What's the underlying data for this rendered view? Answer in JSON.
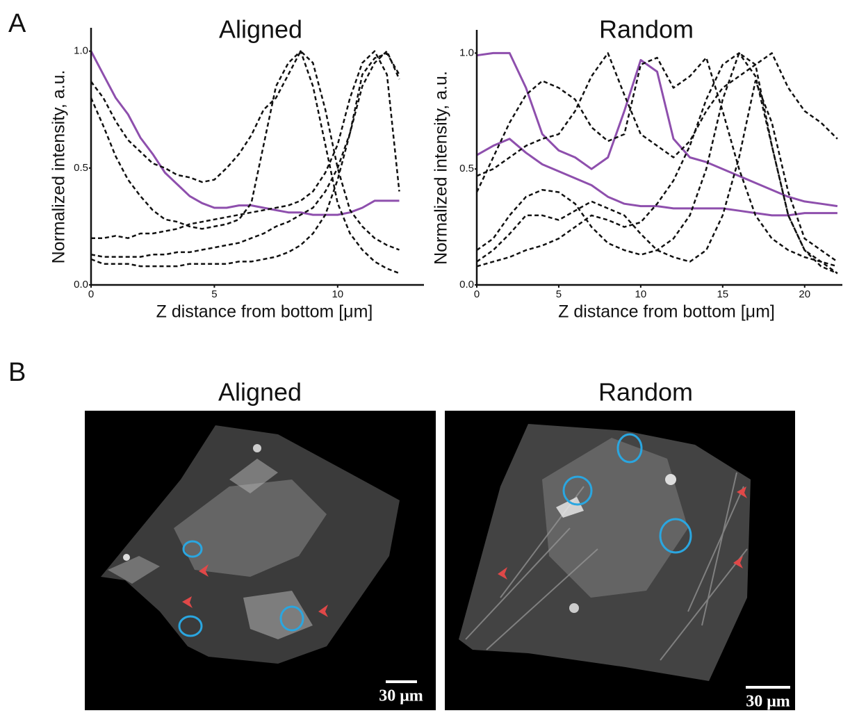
{
  "panel_labels": [
    "A",
    "B"
  ],
  "chart_data": [
    {
      "type": "line",
      "title": "Aligned",
      "xlabel": "Z distance from bottom [μm]",
      "ylabel": "Normalized intensity, a.u.",
      "x": [
        0,
        0.5,
        1,
        1.5,
        2,
        2.5,
        3,
        3.5,
        4,
        4.5,
        5,
        5.5,
        6,
        6.5,
        7,
        7.5,
        8,
        8.5,
        9,
        9.5,
        10,
        10.5,
        11,
        11.5,
        12,
        12.5
      ],
      "xlim": [
        0,
        13.5
      ],
      "xticks": [
        0,
        5,
        10
      ],
      "ylim": [
        0,
        1.1
      ],
      "yticks": [
        {
          "value": 0,
          "label": "0.0"
        },
        {
          "value": 0.5,
          "label": "0.5"
        },
        {
          "value": 1,
          "label": "1.0"
        }
      ],
      "grid": false,
      "series": [
        {
          "color": "#8e4fad",
          "style": "solid",
          "values": [
            1.0,
            0.9,
            0.8,
            0.73,
            0.63,
            0.56,
            0.48,
            0.43,
            0.38,
            0.35,
            0.33,
            0.33,
            0.34,
            0.34,
            0.33,
            0.32,
            0.31,
            0.31,
            0.3,
            0.3,
            0.3,
            0.31,
            0.33,
            0.36,
            0.36,
            0.36
          ]
        },
        {
          "color": "#111111",
          "style": "dashed",
          "values": [
            0.87,
            0.8,
            0.7,
            0.62,
            0.57,
            0.52,
            0.5,
            0.47,
            0.46,
            0.44,
            0.45,
            0.5,
            0.56,
            0.64,
            0.75,
            0.8,
            0.9,
            1.0,
            0.95,
            0.75,
            0.5,
            0.32,
            0.25,
            0.2,
            0.17,
            0.15
          ]
        },
        {
          "color": "#111111",
          "style": "dashed",
          "values": [
            0.8,
            0.68,
            0.55,
            0.45,
            0.38,
            0.32,
            0.28,
            0.27,
            0.25,
            0.24,
            0.25,
            0.26,
            0.28,
            0.35,
            0.6,
            0.85,
            0.95,
            1.0,
            0.85,
            0.6,
            0.35,
            0.22,
            0.15,
            0.1,
            0.07,
            0.05
          ]
        },
        {
          "color": "#111111",
          "style": "dashed",
          "values": [
            0.2,
            0.2,
            0.21,
            0.2,
            0.22,
            0.22,
            0.23,
            0.24,
            0.26,
            0.27,
            0.28,
            0.29,
            0.3,
            0.31,
            0.32,
            0.33,
            0.34,
            0.36,
            0.4,
            0.48,
            0.6,
            0.8,
            0.95,
            1.0,
            0.9,
            0.4
          ]
        },
        {
          "color": "#111111",
          "style": "dashed",
          "values": [
            0.13,
            0.12,
            0.12,
            0.12,
            0.12,
            0.13,
            0.13,
            0.14,
            0.14,
            0.15,
            0.16,
            0.17,
            0.18,
            0.2,
            0.22,
            0.25,
            0.27,
            0.3,
            0.33,
            0.4,
            0.5,
            0.65,
            0.85,
            0.95,
            1.0,
            0.88
          ]
        },
        {
          "color": "#111111",
          "style": "dashed",
          "values": [
            0.11,
            0.09,
            0.09,
            0.09,
            0.08,
            0.08,
            0.08,
            0.08,
            0.09,
            0.09,
            0.09,
            0.09,
            0.1,
            0.1,
            0.11,
            0.12,
            0.14,
            0.17,
            0.22,
            0.3,
            0.45,
            0.65,
            0.9,
            0.97,
            0.99,
            0.9
          ]
        }
      ]
    },
    {
      "type": "line",
      "title": "Random",
      "xlabel": "Z distance from bottom [μm]",
      "ylabel": "Normalized intensity, a.u.",
      "x": [
        0,
        1,
        2,
        3,
        4,
        5,
        6,
        7,
        8,
        9,
        10,
        11,
        12,
        13,
        14,
        15,
        16,
        17,
        18,
        19,
        20,
        21,
        22
      ],
      "xlim": [
        0,
        22.3
      ],
      "xticks": [
        0,
        5,
        10,
        15,
        20
      ],
      "ylim": [
        0,
        1.1
      ],
      "yticks": [
        {
          "value": 0,
          "label": "0.0"
        },
        {
          "value": 0.5,
          "label": "0.5"
        },
        {
          "value": 1,
          "label": "1.0"
        }
      ],
      "grid": false,
      "series": [
        {
          "color": "#8e4fad",
          "style": "solid",
          "values": [
            0.99,
            1.0,
            1.0,
            0.85,
            0.65,
            0.58,
            0.55,
            0.5,
            0.55,
            0.75,
            0.97,
            0.92,
            0.63,
            0.55,
            0.53,
            0.5,
            0.47,
            0.44,
            0.41,
            0.38,
            0.36,
            0.35,
            0.34
          ]
        },
        {
          "color": "#8e4fad",
          "style": "solid",
          "values": [
            0.56,
            0.6,
            0.63,
            0.57,
            0.52,
            0.49,
            0.46,
            0.43,
            0.38,
            0.35,
            0.34,
            0.34,
            0.33,
            0.33,
            0.33,
            0.33,
            0.32,
            0.31,
            0.3,
            0.3,
            0.31,
            0.31,
            0.31
          ]
        },
        {
          "color": "#111111",
          "style": "dashed",
          "values": [
            0.08,
            0.1,
            0.12,
            0.15,
            0.17,
            0.2,
            0.25,
            0.3,
            0.28,
            0.25,
            0.27,
            0.35,
            0.45,
            0.6,
            0.8,
            0.95,
            1.0,
            0.9,
            0.6,
            0.3,
            0.15,
            0.1,
            0.05
          ]
        },
        {
          "color": "#111111",
          "style": "dashed",
          "values": [
            0.4,
            0.55,
            0.7,
            0.82,
            0.88,
            0.85,
            0.8,
            0.68,
            0.62,
            0.65,
            0.95,
            0.98,
            0.85,
            0.9,
            0.98,
            0.75,
            0.5,
            0.3,
            0.2,
            0.15,
            0.12,
            0.1,
            0.08
          ]
        },
        {
          "color": "#111111",
          "style": "dashed",
          "values": [
            0.47,
            0.5,
            0.55,
            0.6,
            0.63,
            0.65,
            0.75,
            0.9,
            1.0,
            0.82,
            0.65,
            0.6,
            0.55,
            0.62,
            0.75,
            0.85,
            0.9,
            0.95,
            1.0,
            0.85,
            0.75,
            0.7,
            0.63
          ]
        },
        {
          "color": "#111111",
          "style": "dashed",
          "values": [
            0.15,
            0.2,
            0.3,
            0.38,
            0.41,
            0.4,
            0.35,
            0.25,
            0.18,
            0.15,
            0.13,
            0.15,
            0.2,
            0.3,
            0.5,
            0.8,
            1.0,
            0.95,
            0.6,
            0.3,
            0.15,
            0.08,
            0.05
          ]
        },
        {
          "color": "#111111",
          "style": "dashed",
          "values": [
            0.1,
            0.15,
            0.22,
            0.3,
            0.3,
            0.28,
            0.32,
            0.36,
            0.33,
            0.3,
            0.22,
            0.15,
            0.12,
            0.1,
            0.15,
            0.3,
            0.55,
            0.88,
            0.7,
            0.4,
            0.2,
            0.15,
            0.1
          ]
        }
      ]
    }
  ],
  "images": [
    {
      "title": "Aligned",
      "scale_bar": "30 μm"
    },
    {
      "title": "Random",
      "scale_bar": "30 μm"
    }
  ]
}
